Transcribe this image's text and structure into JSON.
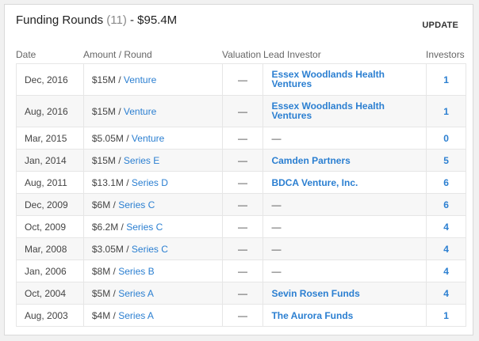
{
  "header": {
    "title": "Funding Rounds",
    "count": "(11)",
    "total": "- $95.4M",
    "update_label": "UPDATE"
  },
  "columns": {
    "date": "Date",
    "amount": "Amount / Round",
    "valuation": "Valuation",
    "lead": "Lead Investor",
    "investors": "Investors"
  },
  "rows": [
    {
      "date": "Dec, 2016",
      "amount": "$15M /",
      "round": "Venture",
      "valuation": "—",
      "lead": "Essex Woodlands Health Ventures",
      "lead_is_link": true,
      "investors": "1"
    },
    {
      "date": "Aug, 2016",
      "amount": "$15M /",
      "round": "Venture",
      "valuation": "—",
      "lead": "Essex Woodlands Health Ventures",
      "lead_is_link": true,
      "investors": "1"
    },
    {
      "date": "Mar, 2015",
      "amount": "$5.05M /",
      "round": "Venture",
      "valuation": "—",
      "lead": "—",
      "lead_is_link": false,
      "investors": "0"
    },
    {
      "date": "Jan, 2014",
      "amount": "$15M /",
      "round": "Series E",
      "valuation": "—",
      "lead": "Camden Partners",
      "lead_is_link": true,
      "investors": "5"
    },
    {
      "date": "Aug, 2011",
      "amount": "$13.1M /",
      "round": "Series D",
      "valuation": "—",
      "lead": "BDCA Venture, Inc.",
      "lead_is_link": true,
      "investors": "6"
    },
    {
      "date": "Dec, 2009",
      "amount": "$6M /",
      "round": "Series C",
      "valuation": "—",
      "lead": "—",
      "lead_is_link": false,
      "investors": "6"
    },
    {
      "date": "Oct, 2009",
      "amount": "$6.2M /",
      "round": "Series C",
      "valuation": "—",
      "lead": "—",
      "lead_is_link": false,
      "investors": "4"
    },
    {
      "date": "Mar, 2008",
      "amount": "$3.05M /",
      "round": "Series C",
      "valuation": "—",
      "lead": "—",
      "lead_is_link": false,
      "investors": "4"
    },
    {
      "date": "Jan, 2006",
      "amount": "$8M /",
      "round": "Series B",
      "valuation": "—",
      "lead": "—",
      "lead_is_link": false,
      "investors": "4"
    },
    {
      "date": "Oct, 2004",
      "amount": "$5M /",
      "round": "Series A",
      "valuation": "—",
      "lead": "Sevin Rosen Funds",
      "lead_is_link": true,
      "investors": "4"
    },
    {
      "date": "Aug, 2003",
      "amount": "$4M /",
      "round": "Series A",
      "valuation": "—",
      "lead": "The Aurora Funds",
      "lead_is_link": true,
      "investors": "1"
    }
  ],
  "colors": {
    "link": "#2b7fd1",
    "text": "#444444",
    "muted": "#8a8a8a",
    "border": "#e6e6e6",
    "row_alt": "#f7f7f7"
  }
}
